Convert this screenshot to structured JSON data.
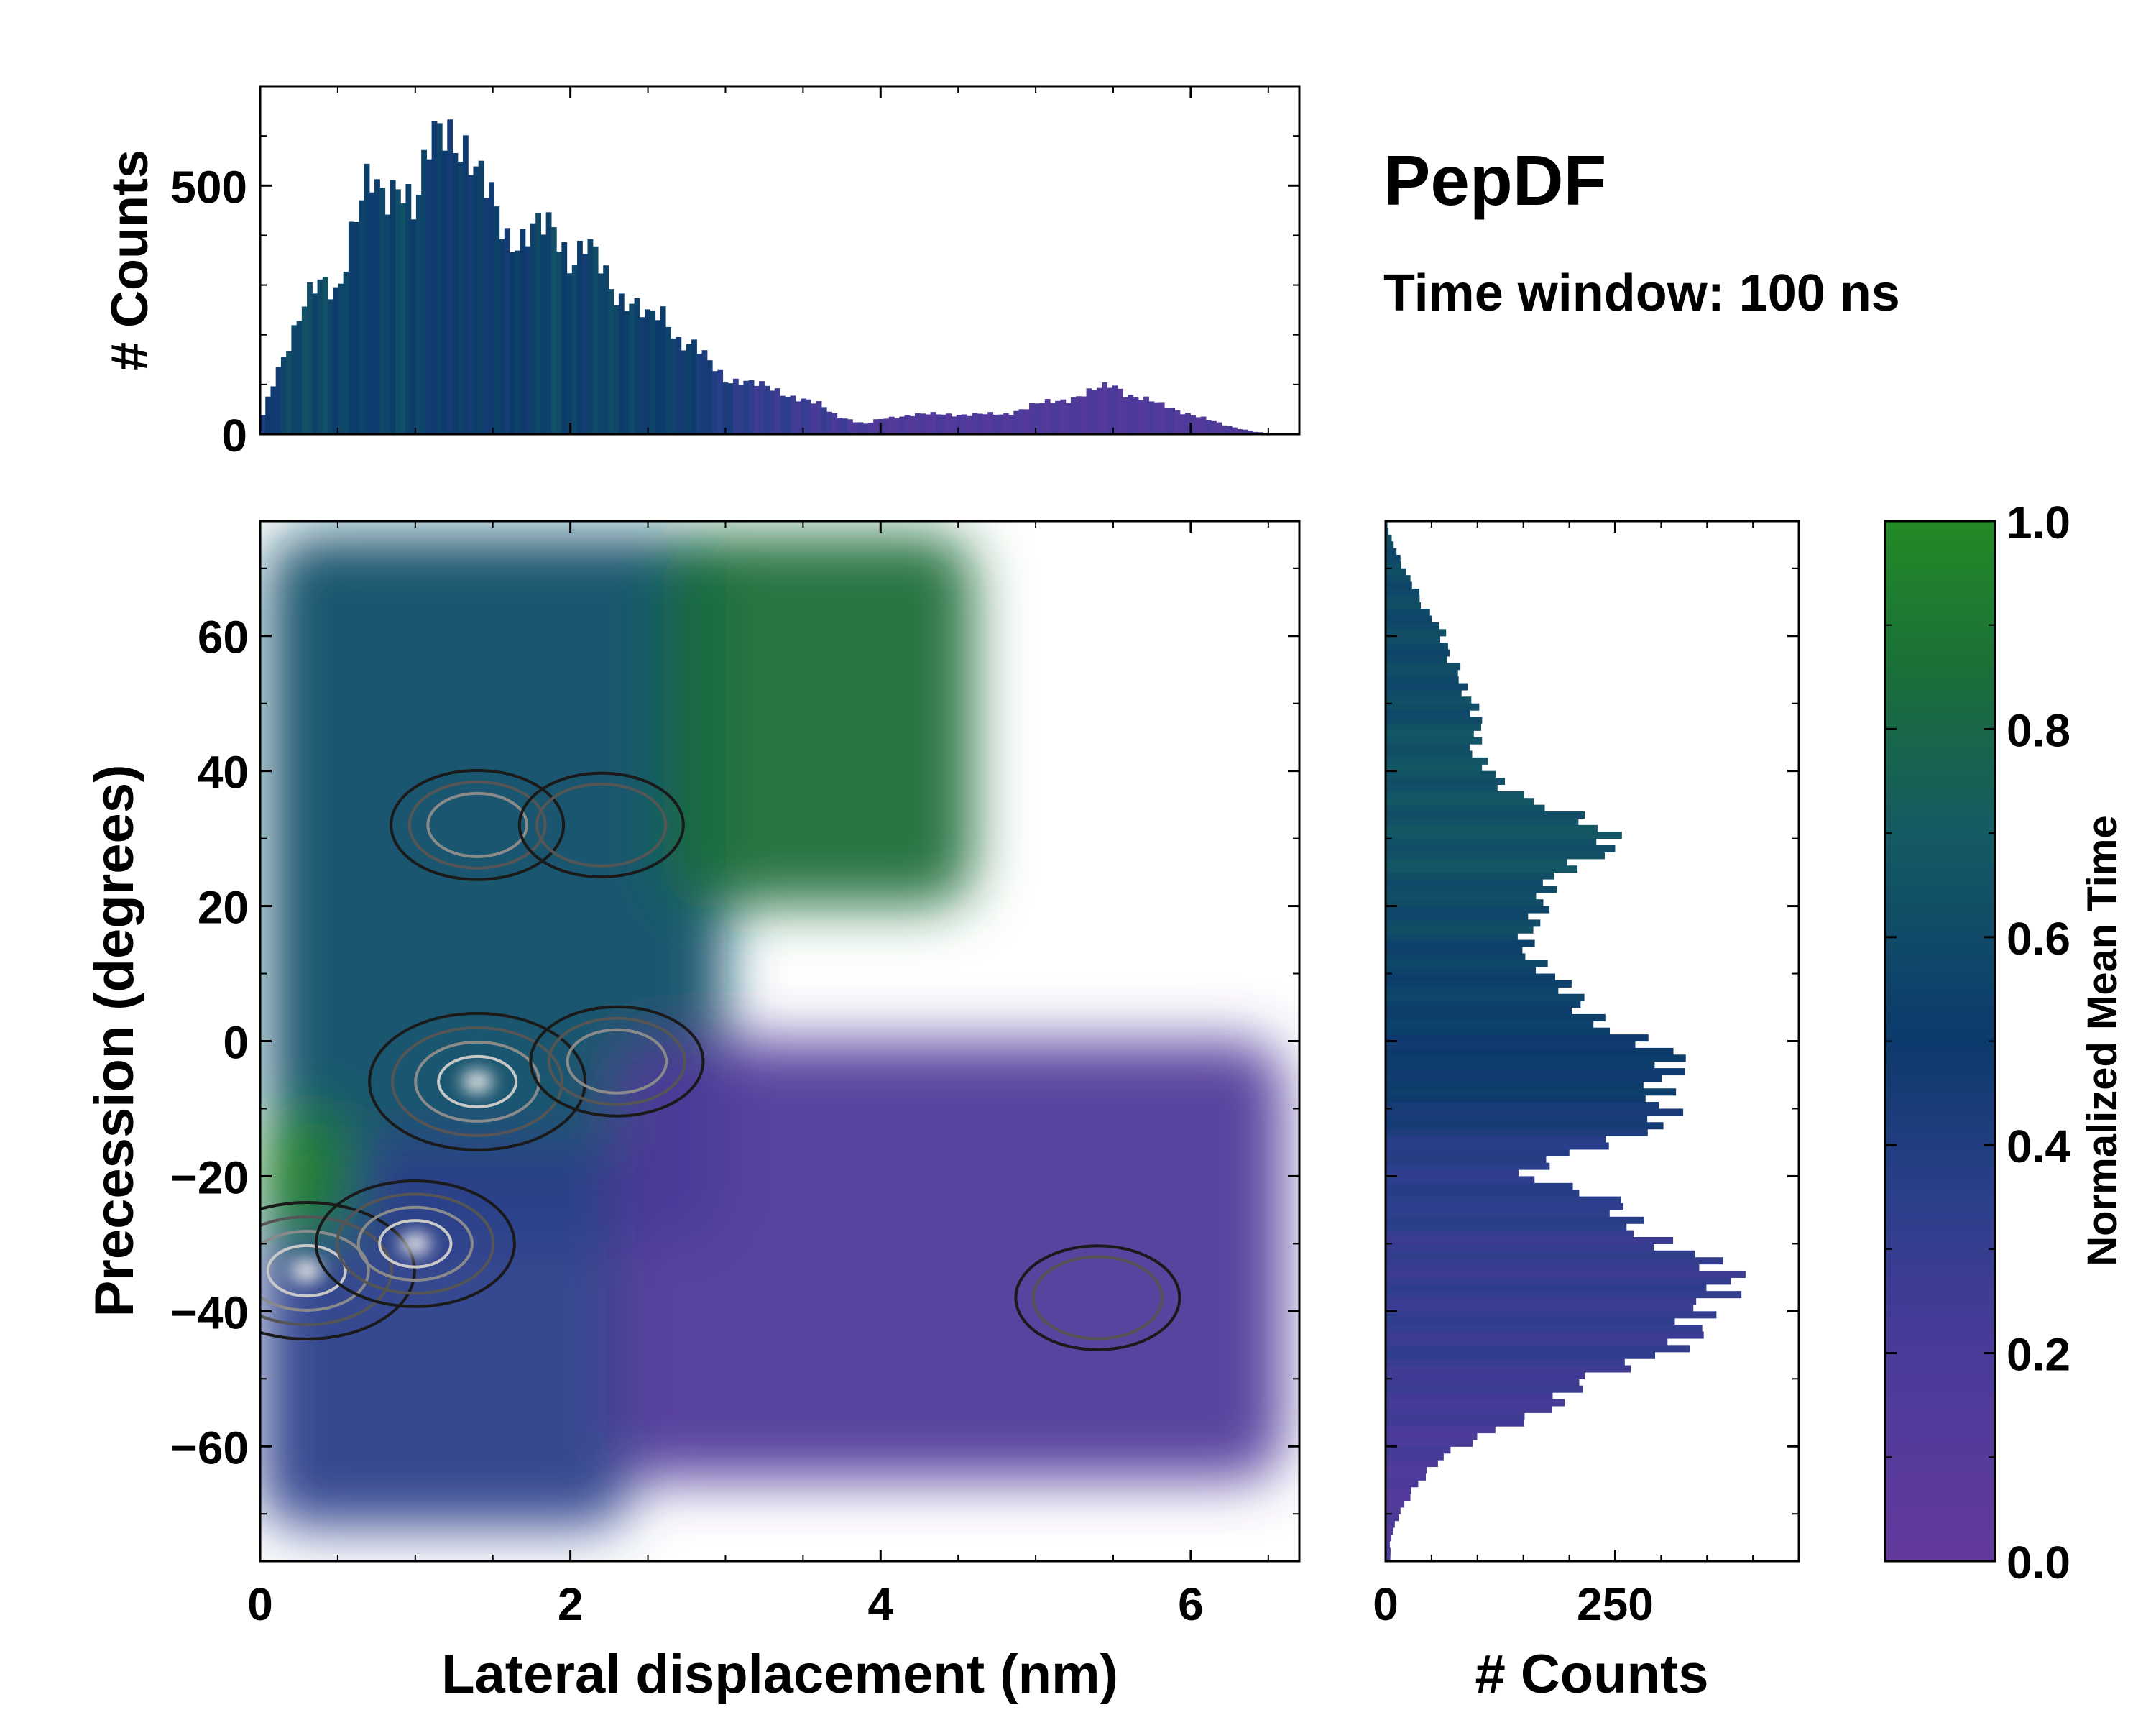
{
  "title": "PepDF",
  "subtitle": "Time window: 100 ns",
  "chart_data": [
    {
      "id": "top-histogram",
      "type": "bar",
      "title": "",
      "xlabel": "",
      "ylabel": "# Counts",
      "xlim": [
        0,
        6.7
      ],
      "ylim": [
        0,
        700
      ],
      "yticks": [
        0,
        500
      ],
      "yticklabels": [
        "0",
        "500"
      ],
      "bin_width": 0.0335,
      "profile_x": [
        0.0,
        0.1,
        0.2,
        0.3,
        0.4,
        0.5,
        0.6,
        0.7,
        0.8,
        0.9,
        1.0,
        1.1,
        1.2,
        1.3,
        1.4,
        1.5,
        1.6,
        1.7,
        1.8,
        1.9,
        2.0,
        2.1,
        2.2,
        2.3,
        2.4,
        2.5,
        2.6,
        2.7,
        2.8,
        2.9,
        3.0,
        3.1,
        3.2,
        3.3,
        3.4,
        3.5,
        3.6,
        3.7,
        3.8,
        3.9,
        4.0,
        4.2,
        4.4,
        4.6,
        4.8,
        5.0,
        5.2,
        5.4,
        5.5,
        5.6,
        5.8,
        6.0,
        6.2,
        6.4,
        6.5,
        6.7
      ],
      "counts": [
        20,
        120,
        200,
        270,
        300,
        290,
        430,
        500,
        470,
        530,
        440,
        580,
        630,
        590,
        510,
        470,
        400,
        390,
        410,
        420,
        350,
        380,
        330,
        280,
        270,
        230,
        240,
        190,
        180,
        140,
        110,
        110,
        100,
        90,
        80,
        70,
        60,
        40,
        30,
        20,
        30,
        40,
        40,
        40,
        40,
        60,
        70,
        90,
        100,
        80,
        60,
        40,
        20,
        5,
        2,
        0
      ],
      "norm_time": [
        0.4,
        0.5,
        0.6,
        0.6,
        0.6,
        0.55,
        0.55,
        0.5,
        0.55,
        0.6,
        0.55,
        0.5,
        0.5,
        0.5,
        0.5,
        0.5,
        0.5,
        0.5,
        0.55,
        0.6,
        0.55,
        0.5,
        0.6,
        0.55,
        0.55,
        0.5,
        0.55,
        0.5,
        0.5,
        0.4,
        0.4,
        0.35,
        0.3,
        0.3,
        0.3,
        0.25,
        0.25,
        0.25,
        0.2,
        0.2,
        0.15,
        0.15,
        0.15,
        0.15,
        0.15,
        0.15,
        0.15,
        0.15,
        0.15,
        0.15,
        0.15,
        0.15,
        0.15,
        0.15,
        0.15,
        0.15
      ]
    },
    {
      "id": "density-map",
      "type": "heatmap",
      "title": "",
      "xlabel": "Lateral displacement (nm)",
      "ylabel": "Precession (degrees)",
      "xlim": [
        0,
        6.7
      ],
      "ylim": [
        -77,
        77
      ],
      "xticks": [
        0,
        2,
        4,
        6
      ],
      "xticklabels": [
        "0",
        "2",
        "4",
        "6"
      ],
      "yticks": [
        -60,
        -40,
        -20,
        0,
        20,
        40,
        60
      ],
      "yticklabels": [
        "−60",
        "−40",
        "−20",
        "0",
        "20",
        "40",
        "60"
      ],
      "colorbar_label": "Normalized Mean Time",
      "regions": [
        {
          "name": "upper-left",
          "x": [
            0.05,
            3.0
          ],
          "y": [
            -30,
            75
          ],
          "norm_time": 0.62
        },
        {
          "name": "upper-right",
          "x": [
            2.6,
            4.6
          ],
          "y": [
            20,
            75
          ],
          "norm_time": 0.85
        },
        {
          "name": "lower-left",
          "x": [
            0.0,
            2.4
          ],
          "y": [
            -72,
            -15
          ],
          "norm_time": 0.35
        },
        {
          "name": "lower-right",
          "x": [
            2.3,
            6.6
          ],
          "y": [
            -65,
            0
          ],
          "norm_time": 0.15
        },
        {
          "name": "left-edge",
          "x": [
            0.0,
            0.6
          ],
          "y": [
            -30,
            -10
          ],
          "norm_time": 0.95
        }
      ],
      "density_peaks": [
        {
          "x": 1.4,
          "y": -6,
          "relative_density": 1.0
        },
        {
          "x": 0.3,
          "y": -34,
          "relative_density": 1.0
        },
        {
          "x": 1.0,
          "y": -30,
          "relative_density": 0.8
        },
        {
          "x": 2.3,
          "y": -3,
          "relative_density": 0.5
        },
        {
          "x": 1.4,
          "y": 32,
          "relative_density": 0.5
        },
        {
          "x": 2.2,
          "y": 32,
          "relative_density": 0.4
        },
        {
          "x": 5.4,
          "y": -38,
          "relative_density": 0.4
        }
      ]
    },
    {
      "id": "right-histogram",
      "type": "bar",
      "orientation": "horizontal",
      "title": "",
      "xlabel": "# Counts",
      "ylabel": "",
      "xlim": [
        0,
        450
      ],
      "xticks": [
        0,
        250
      ],
      "xticklabels": [
        "0",
        "250"
      ],
      "ylim": [
        -77,
        77
      ],
      "bin_width": 1.0,
      "profile_y": [
        -74,
        -70,
        -66,
        -62,
        -58,
        -54,
        -50,
        -47,
        -44,
        -41,
        -38,
        -35,
        -32,
        -29,
        -26,
        -23,
        -20,
        -17,
        -14,
        -11,
        -8,
        -5,
        -2,
        1,
        4,
        7,
        10,
        13,
        16,
        19,
        22,
        25,
        28,
        31,
        34,
        37,
        40,
        43,
        46,
        49,
        52,
        55,
        58,
        61,
        64,
        67,
        70,
        73,
        76
      ],
      "counts": [
        5,
        15,
        30,
        60,
        110,
        180,
        230,
        280,
        320,
        350,
        370,
        360,
        340,
        300,
        260,
        230,
        150,
        200,
        260,
        300,
        310,
        310,
        300,
        260,
        230,
        200,
        170,
        160,
        160,
        160,
        170,
        200,
        240,
        230,
        200,
        140,
        110,
        90,
        110,
        100,
        80,
        80,
        70,
        60,
        40,
        35,
        20,
        10,
        2
      ],
      "norm_time": [
        0.15,
        0.15,
        0.15,
        0.2,
        0.2,
        0.25,
        0.25,
        0.3,
        0.3,
        0.3,
        0.3,
        0.3,
        0.3,
        0.3,
        0.35,
        0.35,
        0.35,
        0.35,
        0.4,
        0.45,
        0.5,
        0.5,
        0.5,
        0.5,
        0.55,
        0.55,
        0.55,
        0.55,
        0.6,
        0.6,
        0.6,
        0.65,
        0.65,
        0.65,
        0.65,
        0.65,
        0.65,
        0.65,
        0.65,
        0.6,
        0.6,
        0.6,
        0.6,
        0.6,
        0.6,
        0.6,
        0.6,
        0.6,
        0.6
      ]
    },
    {
      "id": "colorbar",
      "type": "colorbar",
      "label": "Normalized Mean Time",
      "range": [
        0.0,
        1.0
      ],
      "ticks": [
        0.0,
        0.2,
        0.4,
        0.6,
        0.8,
        1.0
      ],
      "ticklabels": [
        "0.0",
        "0.2",
        "0.4",
        "0.6",
        "0.8",
        "1.0"
      ],
      "colormap": [
        {
          "stop": 0.0,
          "color": "#633a9c"
        },
        {
          "stop": 0.2,
          "color": "#4a3a99"
        },
        {
          "stop": 0.35,
          "color": "#2b3f8a"
        },
        {
          "stop": 0.5,
          "color": "#0c3a6c"
        },
        {
          "stop": 0.7,
          "color": "#145a63"
        },
        {
          "stop": 0.85,
          "color": "#1a6e3a"
        },
        {
          "stop": 1.0,
          "color": "#238a25"
        }
      ]
    }
  ]
}
